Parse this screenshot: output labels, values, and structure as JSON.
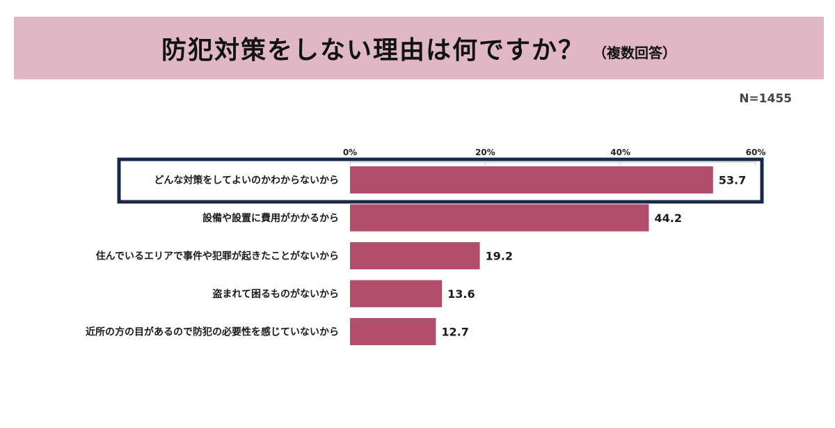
{
  "header": {
    "title": "防犯対策をしない理由は何ですか？",
    "subtitle": "（複数回答）"
  },
  "sample_size": "N=1455",
  "colors": {
    "banner": "#e0b7c4",
    "bar": "#b04e6c",
    "highlight_border": "#17284a"
  },
  "chart_data": {
    "type": "bar",
    "orientation": "horizontal",
    "title": "防犯対策をしない理由は何ですか？",
    "subtitle": "（複数回答）",
    "xlim": [
      0,
      60
    ],
    "ticks": [
      0,
      20,
      40,
      60
    ],
    "tick_labels": [
      "0%",
      "20%",
      "40%",
      "60%"
    ],
    "grid": false,
    "categories": [
      "どんな対策をしてよいのかわからないから",
      "設備や設置に費用がかかるから",
      "住んでいるエリアで事件や犯罪が起きたことがないから",
      "盗まれて困るものがないから",
      "近所の方の目があるので防犯の必要性を感じていないから"
    ],
    "values": [
      53.7,
      44.2,
      19.2,
      13.6,
      12.7
    ],
    "value_labels": [
      "53.7",
      "44.2",
      "19.2",
      "13.6",
      "12.7"
    ],
    "highlighted_index": 0
  }
}
